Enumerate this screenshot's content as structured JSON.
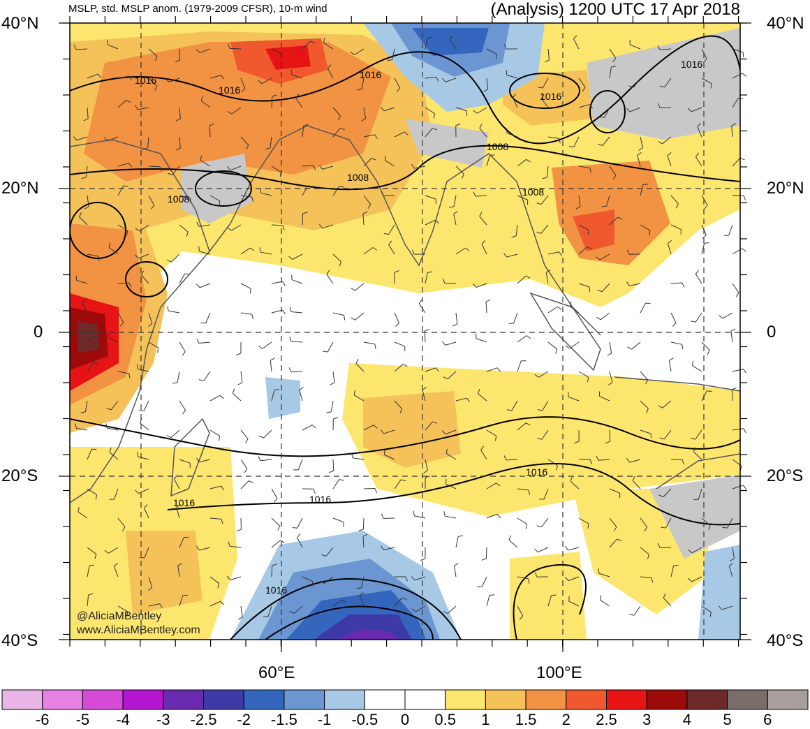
{
  "header": {
    "left_title": "MSLP, std. MSLP anom. (1979-2009 CFSR), 10-m wind",
    "right_title": "(Analysis) 1200 UTC 17 Apr 2018"
  },
  "axes": {
    "lat_labels_left": [
      "40°N",
      "20°N",
      "0",
      "20°S",
      "40°S"
    ],
    "lat_labels_right": [
      "40°N",
      "20°N",
      "0",
      "20°S",
      "40°S"
    ],
    "lon_labels": [
      "60°E",
      "100°E"
    ]
  },
  "isobar_labels": [
    "1016",
    "1016",
    "1016",
    "1016",
    "1008",
    "1008",
    "1008",
    "1008",
    "1016",
    "1016",
    "1016",
    "1016"
  ],
  "credits": {
    "line1": "@AliciaMBentley",
    "line2": "www.AliciaMBentley.com"
  },
  "colorbar": {
    "labels": [
      "-6",
      "-5",
      "-4",
      "-3",
      "-2.5",
      "-2",
      "-1.5",
      "-1",
      "-0.5",
      "0",
      "0.5",
      "1",
      "1.5",
      "2",
      "2.5",
      "3",
      "4",
      "5",
      "6"
    ],
    "colors": [
      "#e9b5e6",
      "#e680e2",
      "#d64ad8",
      "#b416cf",
      "#6a2ab0",
      "#3d3aa6",
      "#3566be",
      "#6b96d1",
      "#a8c9e6",
      "#ffffff",
      "#ffffff",
      "#fde66e",
      "#f5c25a",
      "#f29243",
      "#f0582e",
      "#e61414",
      "#9d0a0a",
      "#6e2a2a",
      "#7a6e6b",
      "#a89e9c"
    ]
  },
  "colors": {
    "land_outline": "#555555",
    "isobar": "#000000",
    "grid": "#333333"
  }
}
